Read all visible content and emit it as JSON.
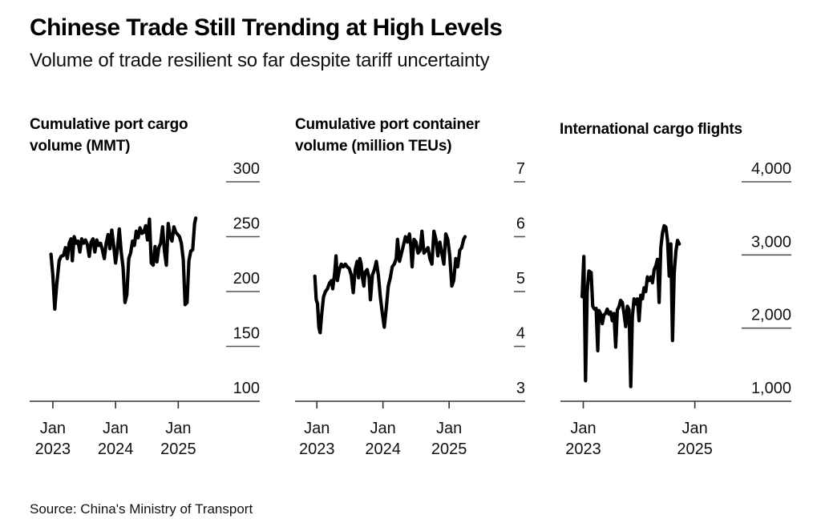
{
  "header": {
    "title": "Chinese Trade Still Trending at High Levels",
    "subtitle": "Volume of trade resilient so far despite tariff uncertainty"
  },
  "footer": {
    "source": "Source: China's Ministry of Transport"
  },
  "chart_data": [
    {
      "type": "line",
      "title": "Cumulative port cargo volume (MMT)",
      "title_lines": [
        "Cumulative port cargo",
        "volume (MMT)"
      ],
      "xlabel": "",
      "ylabel": "",
      "ylim": [
        100,
        300
      ],
      "yticks": [
        300,
        250,
        200,
        150,
        100
      ],
      "ytick_labels": [
        "300",
        "250",
        "200",
        "150",
        "100"
      ],
      "xlim": [
        2022.63,
        2026.3
      ],
      "xticks": [
        2023.0,
        2024.0,
        2025.0
      ],
      "xtick_labels": [
        [
          "Jan",
          "2023"
        ],
        [
          "Jan",
          "2024"
        ],
        [
          "Jan",
          "2025"
        ]
      ],
      "grid": true,
      "series": [
        {
          "name": "Cumulative port cargo volume",
          "color": "#000000",
          "points": [
            [
              2022.97,
              234
            ],
            [
              2023.0,
              215
            ],
            [
              2023.03,
              184
            ],
            [
              2023.06,
              205
            ],
            [
              2023.1,
              228
            ],
            [
              2023.13,
              232
            ],
            [
              2023.17,
              233
            ],
            [
              2023.2,
              240
            ],
            [
              2023.23,
              230
            ],
            [
              2023.26,
              244
            ],
            [
              2023.29,
              248
            ],
            [
              2023.31,
              228
            ],
            [
              2023.34,
              250
            ],
            [
              2023.37,
              244
            ],
            [
              2023.4,
              246
            ],
            [
              2023.43,
              236
            ],
            [
              2023.46,
              248
            ],
            [
              2023.49,
              244
            ],
            [
              2023.52,
              247
            ],
            [
              2023.55,
              243
            ],
            [
              2023.58,
              232
            ],
            [
              2023.61,
              245
            ],
            [
              2023.64,
              248
            ],
            [
              2023.67,
              236
            ],
            [
              2023.7,
              247
            ],
            [
              2023.73,
              242
            ],
            [
              2023.76,
              244
            ],
            [
              2023.79,
              238
            ],
            [
              2023.82,
              230
            ],
            [
              2023.85,
              244
            ],
            [
              2023.88,
              252
            ],
            [
              2023.91,
              239
            ],
            [
              2023.94,
              256
            ],
            [
              2023.97,
              242
            ],
            [
              2024.0,
              226
            ],
            [
              2024.03,
              239
            ],
            [
              2024.06,
              257
            ],
            [
              2024.09,
              236
            ],
            [
              2024.12,
              222
            ],
            [
              2024.15,
              190
            ],
            [
              2024.18,
              197
            ],
            [
              2024.21,
              230
            ],
            [
              2024.24,
              235
            ],
            [
              2024.27,
              246
            ],
            [
              2024.3,
              242
            ],
            [
              2024.33,
              255
            ],
            [
              2024.36,
              249
            ],
            [
              2024.39,
              258
            ],
            [
              2024.42,
              253
            ],
            [
              2024.45,
              254
            ],
            [
              2024.48,
              260
            ],
            [
              2024.51,
              247
            ],
            [
              2024.54,
              266
            ],
            [
              2024.57,
              226
            ],
            [
              2024.6,
              224
            ],
            [
              2024.63,
              241
            ],
            [
              2024.66,
              227
            ],
            [
              2024.69,
              240
            ],
            [
              2024.72,
              244
            ],
            [
              2024.75,
              259
            ],
            [
              2024.78,
              237
            ],
            [
              2024.81,
              224
            ],
            [
              2024.84,
              262
            ],
            [
              2024.87,
              250
            ],
            [
              2024.9,
              246
            ],
            [
              2024.93,
              259
            ],
            [
              2024.96,
              254
            ],
            [
              2024.99,
              252
            ],
            [
              2025.02,
              250
            ],
            [
              2025.05,
              244
            ],
            [
              2025.08,
              229
            ],
            [
              2025.11,
              188
            ],
            [
              2025.14,
              190
            ],
            [
              2025.17,
              228
            ],
            [
              2025.2,
              237
            ],
            [
              2025.23,
              238
            ],
            [
              2025.26,
              262
            ],
            [
              2025.28,
              267
            ]
          ]
        }
      ]
    },
    {
      "type": "line",
      "title": "Cumulative port container volume (million TEUs)",
      "title_lines": [
        "Cumulative port container",
        "volume (million TEUs)"
      ],
      "xlabel": "",
      "ylabel": "",
      "ylim": [
        3,
        7
      ],
      "yticks": [
        7,
        6,
        5,
        4,
        3
      ],
      "ytick_labels": [
        "7",
        "6",
        "5",
        "4",
        "3"
      ],
      "xlim": [
        2022.67,
        2026.15
      ],
      "xticks": [
        2023.0,
        2024.0,
        2025.0
      ],
      "xtick_labels": [
        [
          "Jan",
          "2023"
        ],
        [
          "Jan",
          "2024"
        ],
        [
          "Jan",
          "2025"
        ]
      ],
      "grid": true,
      "series": [
        {
          "name": "Cumulative port container volume",
          "color": "#000000",
          "points": [
            [
              2022.97,
              5.28
            ],
            [
              2022.99,
              4.85
            ],
            [
              2023.01,
              4.78
            ],
            [
              2023.03,
              4.35
            ],
            [
              2023.05,
              4.25
            ],
            [
              2023.07,
              4.55
            ],
            [
              2023.1,
              4.9
            ],
            [
              2023.13,
              5.0
            ],
            [
              2023.16,
              5.05
            ],
            [
              2023.19,
              5.15
            ],
            [
              2023.22,
              5.2
            ],
            [
              2023.24,
              5.05
            ],
            [
              2023.27,
              5.35
            ],
            [
              2023.29,
              5.65
            ],
            [
              2023.31,
              5.2
            ],
            [
              2023.34,
              5.4
            ],
            [
              2023.37,
              5.5
            ],
            [
              2023.4,
              5.45
            ],
            [
              2023.43,
              5.5
            ],
            [
              2023.46,
              5.45
            ],
            [
              2023.49,
              5.42
            ],
            [
              2023.52,
              5.3
            ],
            [
              2023.55,
              4.98
            ],
            [
              2023.58,
              5.4
            ],
            [
              2023.61,
              5.55
            ],
            [
              2023.63,
              5.25
            ],
            [
              2023.65,
              5.6
            ],
            [
              2023.67,
              5.5
            ],
            [
              2023.69,
              5.25
            ],
            [
              2023.71,
              5.1
            ],
            [
              2023.73,
              5.35
            ],
            [
              2023.76,
              5.4
            ],
            [
              2023.79,
              5.25
            ],
            [
              2023.81,
              4.85
            ],
            [
              2023.84,
              5.3
            ],
            [
              2023.87,
              5.4
            ],
            [
              2023.9,
              5.55
            ],
            [
              2023.93,
              5.3
            ],
            [
              2023.96,
              4.9
            ],
            [
              2023.99,
              4.6
            ],
            [
              2024.02,
              4.35
            ],
            [
              2024.05,
              4.7
            ],
            [
              2024.08,
              5.1
            ],
            [
              2024.11,
              5.25
            ],
            [
              2024.14,
              5.45
            ],
            [
              2024.17,
              5.5
            ],
            [
              2024.2,
              5.6
            ],
            [
              2024.22,
              5.95
            ],
            [
              2024.25,
              5.55
            ],
            [
              2024.28,
              5.7
            ],
            [
              2024.31,
              5.85
            ],
            [
              2024.34,
              6.0
            ],
            [
              2024.37,
              5.9
            ],
            [
              2024.4,
              6.05
            ],
            [
              2024.42,
              5.85
            ],
            [
              2024.44,
              5.45
            ],
            [
              2024.47,
              5.95
            ],
            [
              2024.5,
              5.9
            ],
            [
              2024.53,
              5.7
            ],
            [
              2024.56,
              5.75
            ],
            [
              2024.59,
              6.1
            ],
            [
              2024.62,
              5.7
            ],
            [
              2024.65,
              5.75
            ],
            [
              2024.68,
              5.8
            ],
            [
              2024.71,
              5.6
            ],
            [
              2024.74,
              5.5
            ],
            [
              2024.77,
              6.1
            ],
            [
              2024.8,
              5.95
            ],
            [
              2024.83,
              5.65
            ],
            [
              2024.86,
              5.9
            ],
            [
              2024.89,
              5.7
            ],
            [
              2024.92,
              5.5
            ],
            [
              2024.95,
              6.05
            ],
            [
              2024.98,
              5.95
            ],
            [
              2025.01,
              5.65
            ],
            [
              2025.04,
              5.1
            ],
            [
              2025.07,
              5.2
            ],
            [
              2025.1,
              5.6
            ],
            [
              2025.13,
              5.45
            ],
            [
              2025.16,
              5.75
            ],
            [
              2025.19,
              5.8
            ],
            [
              2025.22,
              5.95
            ],
            [
              2025.24,
              6.0
            ]
          ]
        }
      ]
    },
    {
      "type": "line",
      "title": "International cargo flights",
      "title_lines": [
        "International cargo flights"
      ],
      "xlabel": "",
      "ylabel": "",
      "ylim": [
        1000,
        4000
      ],
      "yticks": [
        4000,
        3000,
        2000,
        1000
      ],
      "ytick_labels": [
        "4,000",
        "3,000",
        "2,000",
        "1,000"
      ],
      "xlim": [
        2022.59,
        2026.73
      ],
      "xticks": [
        2023.0,
        2025.0
      ],
      "xtick_labels": [
        [
          "Jan",
          "2023"
        ],
        [
          "Jan",
          "2025"
        ]
      ],
      "grid": true,
      "series": [
        {
          "name": "International cargo flights",
          "color": "#000000",
          "points": [
            [
              2022.98,
              2430
            ],
            [
              2023.01,
              2980
            ],
            [
              2023.04,
              1280
            ],
            [
              2023.07,
              2500
            ],
            [
              2023.1,
              2780
            ],
            [
              2023.14,
              2760
            ],
            [
              2023.17,
              2300
            ],
            [
              2023.2,
              2260
            ],
            [
              2023.23,
              2270
            ],
            [
              2023.26,
              1690
            ],
            [
              2023.28,
              2240
            ],
            [
              2023.31,
              2200
            ],
            [
              2023.34,
              2060
            ],
            [
              2023.37,
              2180
            ],
            [
              2023.4,
              2200
            ],
            [
              2023.43,
              2260
            ],
            [
              2023.46,
              2190
            ],
            [
              2023.49,
              2220
            ],
            [
              2023.52,
              2100
            ],
            [
              2023.55,
              2200
            ],
            [
              2023.58,
              1740
            ],
            [
              2023.61,
              2250
            ],
            [
              2023.64,
              2290
            ],
            [
              2023.67,
              2380
            ],
            [
              2023.7,
              2350
            ],
            [
              2023.73,
              2200
            ],
            [
              2023.76,
              2020
            ],
            [
              2023.79,
              2300
            ],
            [
              2023.82,
              2250
            ],
            [
              2023.85,
              1200
            ],
            [
              2023.88,
              2150
            ],
            [
              2023.91,
              2400
            ],
            [
              2023.94,
              2330
            ],
            [
              2023.97,
              2400
            ],
            [
              2024.0,
              2100
            ],
            [
              2024.03,
              2450
            ],
            [
              2024.06,
              2400
            ],
            [
              2024.09,
              2550
            ],
            [
              2024.12,
              2500
            ],
            [
              2024.15,
              2700
            ],
            [
              2024.18,
              2650
            ],
            [
              2024.21,
              2700
            ],
            [
              2024.24,
              2620
            ],
            [
              2024.27,
              2800
            ],
            [
              2024.3,
              2850
            ],
            [
              2024.33,
              2940
            ],
            [
              2024.36,
              2350
            ],
            [
              2024.39,
              3100
            ],
            [
              2024.42,
              3300
            ],
            [
              2024.45,
              3400
            ],
            [
              2024.48,
              3380
            ],
            [
              2024.51,
              3200
            ],
            [
              2024.54,
              2710
            ],
            [
              2024.57,
              3150
            ],
            [
              2024.6,
              1830
            ],
            [
              2024.63,
              2750
            ],
            [
              2024.66,
              3050
            ],
            [
              2024.69,
              3200
            ],
            [
              2024.72,
              3150
            ]
          ]
        }
      ]
    }
  ]
}
